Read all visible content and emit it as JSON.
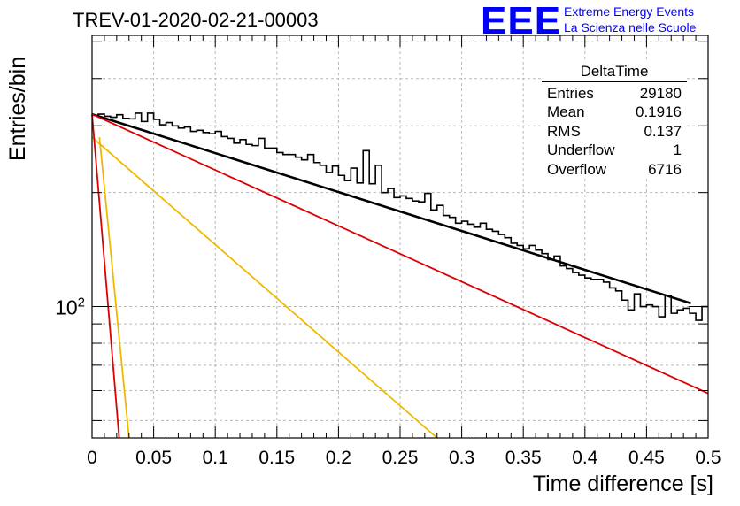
{
  "title": "TREV-01-2020-02-21-00003",
  "logo": {
    "mark": "EEE",
    "line1": "Extreme Energy Events",
    "line2": "La Scienza nelle Scuole"
  },
  "stats_box": {
    "name": "DeltaTime",
    "rows": [
      {
        "label": "Entries",
        "value": "29180"
      },
      {
        "label": "Mean",
        "value": "0.1916"
      },
      {
        "label": "RMS",
        "value": "0.137"
      },
      {
        "label": "Underflow",
        "value": "1"
      },
      {
        "label": "Overflow",
        "value": "6716"
      }
    ]
  },
  "chart_data": {
    "type": "line",
    "xlabel": "Time difference [s]",
    "ylabel": "Entries/bin",
    "xlim": [
      0,
      0.5
    ],
    "ylim": [
      45,
      520
    ],
    "yscale": "log",
    "grid": true,
    "x_ticks": [
      "0",
      "0.05",
      "0.1",
      "0.15",
      "0.2",
      "0.25",
      "0.3",
      "0.35",
      "0.4",
      "0.45",
      "0.5"
    ],
    "y_tick_label": "10^2",
    "colors": {
      "histogram": "#000000",
      "fit_total": "#000000",
      "slow_component": "#dd0000",
      "fast_yellow": "#f0b800",
      "fast_red": "#dd0000"
    },
    "histogram": {
      "bin_width": 0.005,
      "x_start": 0,
      "values": [
        320,
        322,
        318,
        316,
        321,
        314,
        313,
        324,
        308,
        324,
        312,
        302,
        306,
        300,
        296,
        298,
        290,
        292,
        288,
        286,
        290,
        281,
        278,
        270,
        276,
        268,
        266,
        278,
        262,
        262,
        255,
        252,
        252,
        248,
        244,
        252,
        240,
        236,
        226,
        235,
        222,
        215,
        232,
        212,
        258,
        211,
        236,
        200,
        205,
        194,
        196,
        193,
        190,
        189,
        199,
        180,
        185,
        174,
        172,
        166,
        168,
        165,
        162,
        166,
        160,
        158,
        155,
        152,
        147,
        145,
        142,
        145,
        141,
        138,
        133,
        136,
        128,
        126,
        123,
        121,
        119,
        118,
        118,
        116,
        112,
        110,
        104,
        98,
        108,
        100,
        101,
        100,
        94,
        107,
        96,
        98,
        99,
        96,
        92,
        100
      ]
    },
    "fits": [
      {
        "name": "total",
        "points": [
          [
            0,
            322
          ],
          [
            0.486,
            102
          ]
        ]
      },
      {
        "name": "slow",
        "points": [
          [
            0,
            322
          ],
          [
            0.5,
            59
          ]
        ]
      },
      {
        "name": "fast_yellow",
        "points": [
          [
            0,
            280
          ],
          [
            0.28,
            45
          ]
        ]
      },
      {
        "name": "fast_red",
        "points": [
          [
            0,
            322
          ],
          [
            0.022,
            45
          ]
        ]
      },
      {
        "name": "fast_yellow_2",
        "points": [
          [
            0.006,
            280
          ],
          [
            0.03,
            45
          ]
        ]
      }
    ]
  }
}
